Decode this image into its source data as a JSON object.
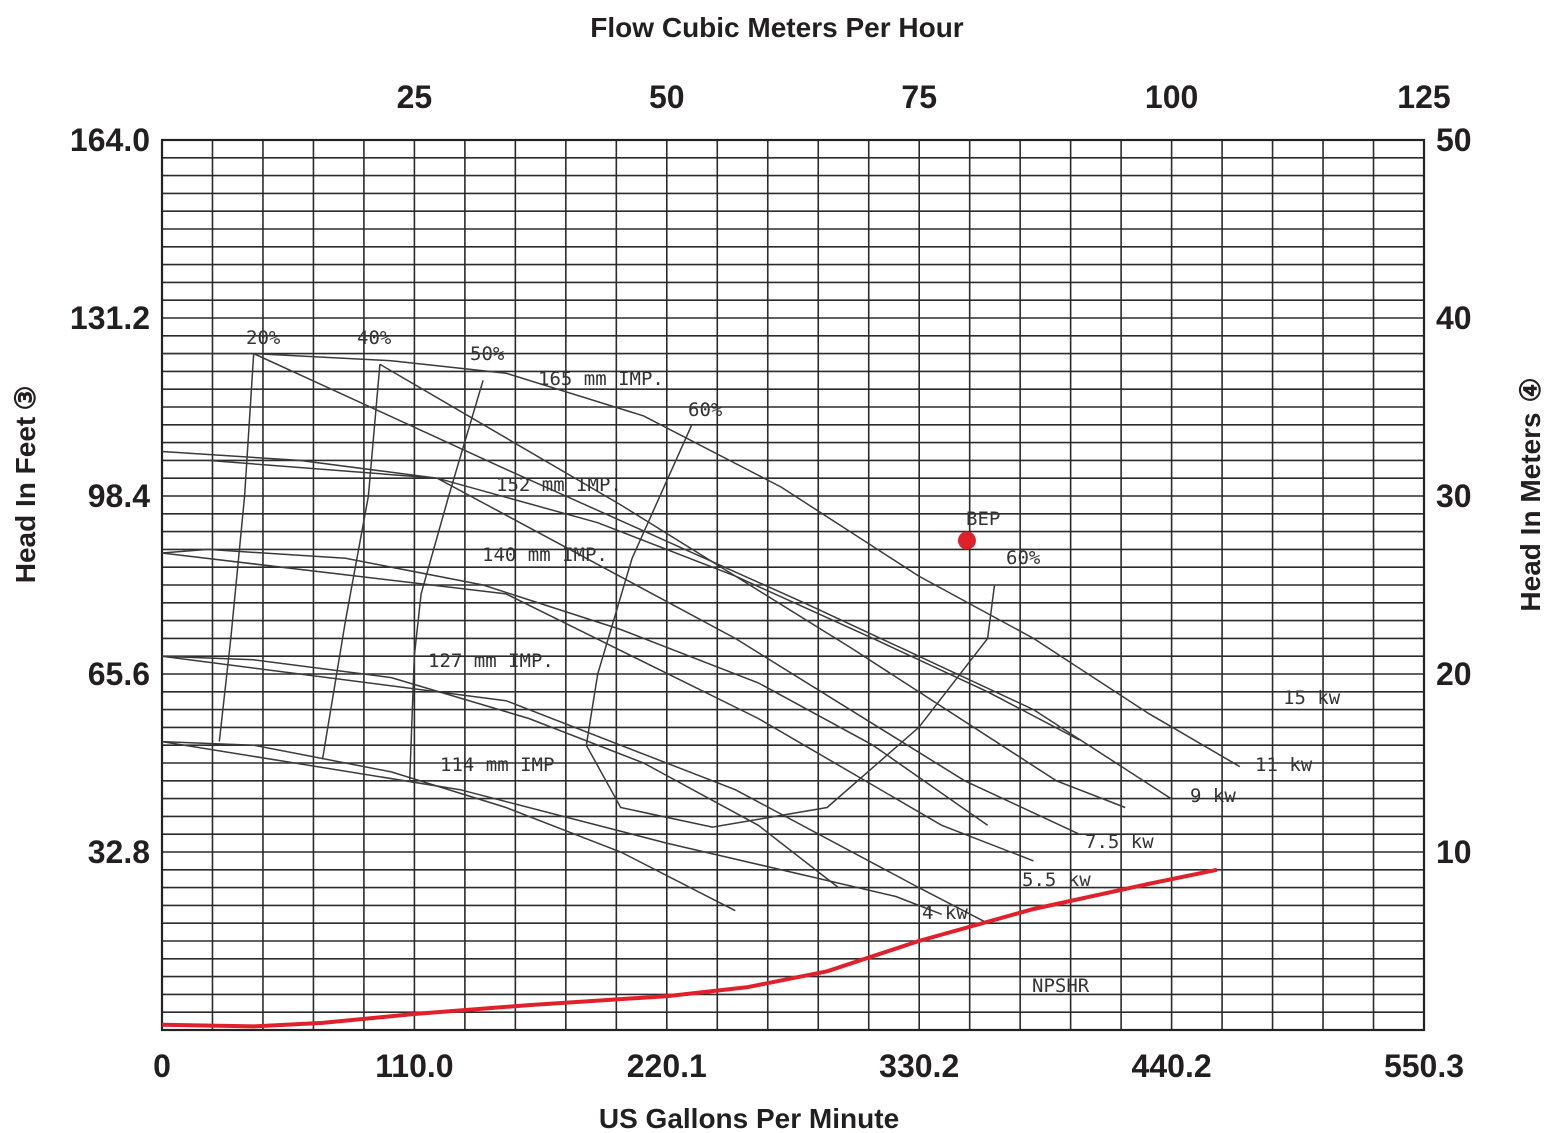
{
  "chart_data": {
    "type": "line",
    "title": "",
    "top_axis_label": "Flow Cubic Meters Per Hour",
    "xlabel": "US Gallons Per Minute",
    "ylabel_left": "Head In Feet",
    "ylabel_left_marker": "③",
    "ylabel_right": "Head In Meters",
    "ylabel_right_marker": "④",
    "x_range_gpm": [
      0,
      550.3
    ],
    "head_range_m": [
      0,
      50
    ],
    "grid": true,
    "x_ticks_bottom": [
      "0",
      "110.0",
      "220.1",
      "330.2",
      "440.2",
      "550.3"
    ],
    "x_ticks_top": [
      "25",
      "50",
      "75",
      "100",
      "125"
    ],
    "y_ticks_left": [
      "164.0",
      "131.2",
      "98.4",
      "65.6",
      "32.8"
    ],
    "y_ticks_right": [
      "50",
      "40",
      "30",
      "20",
      "10"
    ],
    "impeller_curves": [
      {
        "label": "165 mm IMP.",
        "points": [
          [
            0,
            38.0
          ],
          [
            40,
            38.0
          ],
          [
            100,
            37.6
          ],
          [
            150,
            36.9
          ],
          [
            210,
            34.5
          ],
          [
            270,
            30.5
          ],
          [
            330,
            25.5
          ],
          [
            380,
            22.0
          ],
          [
            430,
            17.8
          ],
          [
            470,
            14.8
          ]
        ]
      },
      {
        "label": "152 mm IMP.",
        "points": [
          [
            0,
            32.5
          ],
          [
            60,
            32.0
          ],
          [
            120,
            31.0
          ],
          [
            190,
            28.5
          ],
          [
            250,
            25.5
          ],
          [
            310,
            22.0
          ],
          [
            360,
            19.0
          ],
          [
            400,
            16.3
          ]
        ]
      },
      {
        "label": "140 mm IMP.",
        "points": [
          [
            0,
            26.8
          ],
          [
            20,
            27.0
          ],
          [
            80,
            26.5
          ],
          [
            140,
            25.0
          ],
          [
            200,
            22.5
          ],
          [
            260,
            19.5
          ],
          [
            310,
            16.0
          ],
          [
            360,
            11.5
          ]
        ]
      },
      {
        "label": "127 mm IMP.",
        "points": [
          [
            0,
            21.0
          ],
          [
            40,
            20.8
          ],
          [
            100,
            19.8
          ],
          [
            160,
            17.5
          ],
          [
            210,
            15.0
          ],
          [
            260,
            11.5
          ],
          [
            295,
            8.0
          ]
        ]
      },
      {
        "label": "114 mm IMP",
        "points": [
          [
            0,
            16.2
          ],
          [
            40,
            16.0
          ],
          [
            100,
            14.5
          ],
          [
            150,
            12.5
          ],
          [
            200,
            10.0
          ],
          [
            250,
            6.7
          ]
        ]
      }
    ],
    "efficiency_curves": [
      {
        "label": "20%",
        "points": [
          [
            40,
            38.0
          ],
          [
            36,
            30.0
          ],
          [
            30,
            22.0
          ],
          [
            25,
            16.2
          ]
        ]
      },
      {
        "label": "40%",
        "points": [
          [
            95,
            37.4
          ],
          [
            90,
            30.0
          ],
          [
            80,
            23.0
          ],
          [
            70,
            15.2
          ]
        ]
      },
      {
        "label": "50%",
        "points": [
          [
            140,
            36.5
          ],
          [
            125,
            30.0
          ],
          [
            113,
            24.5
          ],
          [
            110,
            21.0
          ],
          [
            108,
            14.0
          ]
        ]
      },
      {
        "label": "60%",
        "points": [
          [
            231,
            34.0
          ],
          [
            205,
            26.5
          ],
          [
            190,
            20.0
          ],
          [
            185,
            16.0
          ],
          [
            200,
            12.5
          ],
          [
            240,
            11.4
          ],
          [
            290,
            12.5
          ],
          [
            330,
            17.0
          ],
          [
            360,
            22.0
          ],
          [
            363,
            25.0
          ]
        ]
      }
    ],
    "power_curves": [
      {
        "label": "15 kw",
        "points": [
          [
            40,
            38.0
          ],
          [
            150,
            31.5
          ],
          [
            280,
            24.0
          ],
          [
            380,
            18.0
          ],
          [
            440,
            13.0
          ]
        ]
      },
      {
        "label": "11 kw",
        "points": [
          [
            95,
            37.4
          ],
          [
            200,
            29.5
          ],
          [
            300,
            21.5
          ],
          [
            390,
            14.0
          ],
          [
            420,
            12.5
          ]
        ]
      },
      {
        "label": "9 kw",
        "points": [
          [
            20,
            32.0
          ],
          [
            120,
            31.0
          ],
          [
            250,
            22.0
          ],
          [
            350,
            14.0
          ],
          [
            400,
            11.0
          ]
        ]
      },
      {
        "label": "7.5 kw",
        "points": [
          [
            0,
            26.8
          ],
          [
            150,
            24.5
          ],
          [
            260,
            17.5
          ],
          [
            340,
            11.5
          ],
          [
            380,
            9.5
          ]
        ]
      },
      {
        "label": "5.5 kw",
        "points": [
          [
            0,
            21.0
          ],
          [
            150,
            18.5
          ],
          [
            250,
            13.5
          ],
          [
            330,
            8.0
          ],
          [
            360,
            6.0
          ]
        ]
      },
      {
        "label": "4 kw",
        "points": [
          [
            0,
            16.2
          ],
          [
            130,
            13.5
          ],
          [
            220,
            10.5
          ],
          [
            320,
            7.5
          ],
          [
            340,
            6.5
          ]
        ]
      }
    ],
    "npshr": {
      "label": "NPSHR",
      "points": [
        [
          0,
          0.3
        ],
        [
          40,
          0.2
        ],
        [
          70,
          0.4
        ],
        [
          110,
          0.9
        ],
        [
          160,
          1.4
        ],
        [
          220,
          1.9
        ],
        [
          255,
          2.4
        ],
        [
          290,
          3.3
        ],
        [
          330,
          5.0
        ],
        [
          380,
          6.8
        ],
        [
          430,
          8.2
        ],
        [
          460,
          9.0
        ]
      ]
    },
    "bep": {
      "label": "BEP",
      "gpm": 351,
      "head_m": 27.5
    }
  }
}
